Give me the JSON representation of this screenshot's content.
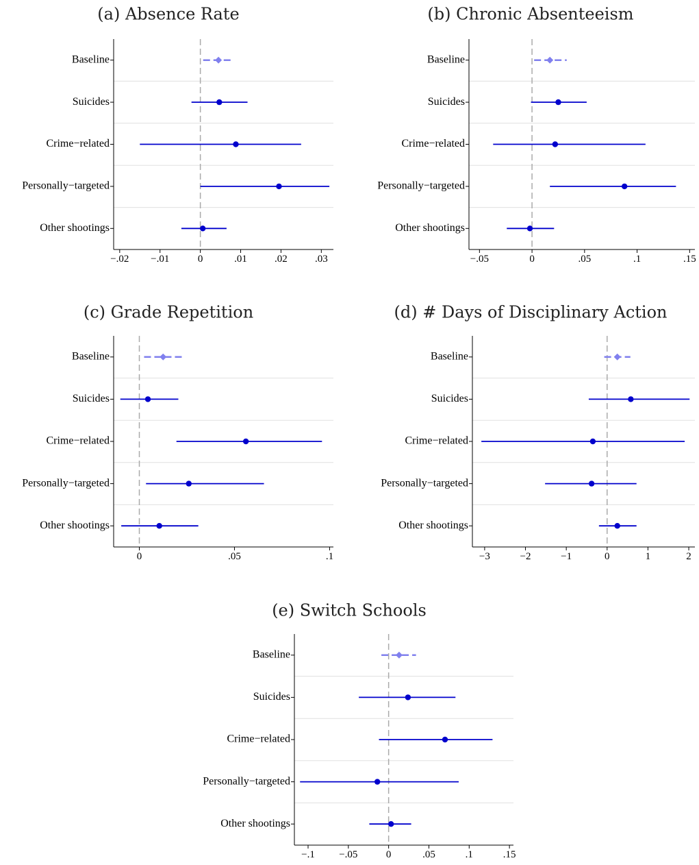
{
  "colors": {
    "point": "#0000cc",
    "line": "#0000cc",
    "baseline": "#8080ee",
    "zero_line": "#aaaaaa",
    "separator": "#e0e0e0",
    "axis": "#000000"
  },
  "chart_data": [
    {
      "type": "coefficient-plot",
      "title": "(a) Absence Rate",
      "categories": [
        "Baseline",
        "Suicides",
        "Crime−related",
        "Personally−targeted",
        "Other shootings"
      ],
      "estimates": [
        0.0045,
        0.0047,
        0.0088,
        0.0195,
        0.0006
      ],
      "ci_low": [
        0.0007,
        -0.0022,
        -0.015,
        0.0,
        -0.0047
      ],
      "ci_high": [
        0.0083,
        0.0117,
        0.025,
        0.032,
        0.0065
      ],
      "xticks": [
        -0.02,
        -0.01,
        0,
        0.01,
        0.02,
        0.03
      ],
      "xtick_labels": [
        "−.02",
        "−.01",
        "0",
        ".01",
        ".02",
        ".03"
      ],
      "xlim": [
        -0.0215,
        0.033
      ],
      "reference_line": 0
    },
    {
      "type": "coefficient-plot",
      "title": "(b) Chronic Absenteeism",
      "categories": [
        "Baseline",
        "Suicides",
        "Crime−related",
        "Personally−targeted",
        "Other shootings"
      ],
      "estimates": [
        0.017,
        0.025,
        0.022,
        0.088,
        -0.002
      ],
      "ci_low": [
        0.002,
        -0.001,
        -0.037,
        0.017,
        -0.024
      ],
      "ci_high": [
        0.033,
        0.052,
        0.108,
        0.137,
        0.021
      ],
      "xticks": [
        -0.05,
        0,
        0.05,
        0.1,
        0.15
      ],
      "xtick_labels": [
        "−.05",
        "0",
        ".05",
        ".1",
        ".15"
      ],
      "xlim": [
        -0.06,
        0.155
      ],
      "reference_line": 0
    },
    {
      "type": "coefficient-plot",
      "title": "(c) Grade Repetition",
      "categories": [
        "Baseline",
        "Suicides",
        "Crime−related",
        "Personally−targeted",
        "Other shootings"
      ],
      "estimates": [
        0.0125,
        0.0045,
        0.056,
        0.026,
        0.0105
      ],
      "ci_low": [
        0.0025,
        -0.01,
        0.0195,
        0.0035,
        -0.0095
      ],
      "ci_high": [
        0.023,
        0.0205,
        0.096,
        0.0655,
        0.031
      ],
      "xticks": [
        0,
        0.05,
        0.1
      ],
      "xtick_labels": [
        "0",
        ".05",
        ".1"
      ],
      "xlim": [
        -0.0135,
        0.102
      ],
      "reference_line": 0
    },
    {
      "type": "coefficient-plot",
      "title": "(d) # Days of Disciplinary Action",
      "categories": [
        "Baseline",
        "Suicides",
        "Crime−related",
        "Personally−targeted",
        "Other shootings"
      ],
      "estimates": [
        0.25,
        0.58,
        -0.35,
        -0.38,
        0.25
      ],
      "ci_low": [
        -0.07,
        -0.45,
        -3.08,
        -1.52,
        -0.2
      ],
      "ci_high": [
        0.57,
        2.02,
        1.9,
        0.72,
        0.72
      ],
      "xticks": [
        -3,
        -2,
        -1,
        0,
        1,
        2
      ],
      "xtick_labels": [
        "−3",
        "−2",
        "−1",
        "0",
        "1",
        "2"
      ],
      "xlim": [
        -3.3,
        2.15
      ],
      "reference_line": 0
    },
    {
      "type": "coefficient-plot",
      "title": "(e) Switch Schools",
      "categories": [
        "Baseline",
        "Suicides",
        "Crime−related",
        "Personally−targeted",
        "Other shootings"
      ],
      "estimates": [
        0.013,
        0.024,
        0.07,
        -0.014,
        0.003
      ],
      "ci_low": [
        -0.009,
        -0.037,
        -0.012,
        -0.11,
        -0.024
      ],
      "ci_high": [
        0.034,
        0.083,
        0.129,
        0.087,
        0.028
      ],
      "xticks": [
        -0.1,
        -0.05,
        0,
        0.05,
        0.1,
        0.15
      ],
      "xtick_labels": [
        "−.1",
        "−.05",
        "0",
        ".05",
        ".1",
        ".15"
      ],
      "xlim": [
        -0.117,
        0.155
      ],
      "reference_line": 0
    }
  ]
}
